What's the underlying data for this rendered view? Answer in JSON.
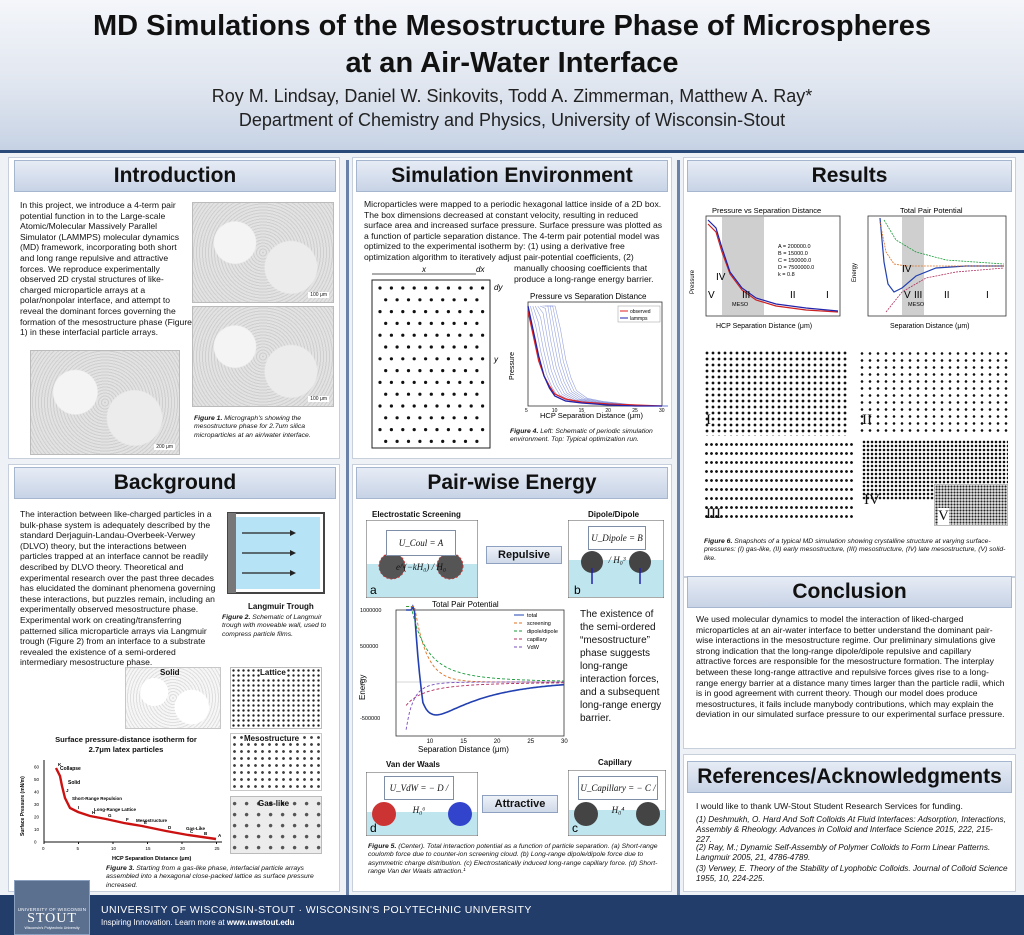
{
  "header": {
    "title_line1": "MD Simulations of the Mesostructure Phase of Microspheres",
    "title_line2": "at an Air-Water Interface",
    "authors": "Roy M. Lindsay, Daniel W. Sinkovits, Todd A. Zimmerman, Matthew A. Ray*",
    "department": "Department of Chemistry and Physics, University of Wisconsin-Stout"
  },
  "introduction": {
    "heading": "Introduction",
    "text": "In this project, we introduce a 4-term pair potential function in to the Large-scale Atomic/Molecular Massively Parallel Simulator (LAMMPS) molecular dynamics (MD) framework, incorporating both short and long range repulsive and attractive forces. We reproduce experimentally observed 2D crystal structures of like-charged microparticle arrays at a polar/nonpolar interface, and attempt to reveal the dominant forces governing the formation of the mesostructure phase (Figure 1) in these interfacial particle arrays.",
    "scale_100": "100 μm",
    "scale_200": "200 μm",
    "fig1_label": "Figure 1.",
    "fig1_caption": "Micrograph's showing the mesostructure phase for 2.7um silica microparticles at an air/water interface."
  },
  "background": {
    "heading": "Background",
    "text": "The interaction between like-charged particles in a bulk-phase system is adequately described by the standard Derjaguin-Landau-Overbeek-Verwey (DLVO) theory, but the interactions between particles trapped at an interface cannot be readily described by DLVO theory. Theoretical and experimental research over the past three decades has elucidated the dominant phenomena governing these interactions, but puzzles remain, including an experimentally observed mesostructure phase. Experimental work on creating/transferring patterned silica microparticle arrays via Langmuir trough (Figure 2) from an interface to a substrate revealed the existence of a semi-ordered intermediary mesostructure phase.",
    "trough_label": "Langmuir Trough",
    "fig2_label": "Figure 2.",
    "fig2_caption": "Schematic of Langmuir trough with moveable wall, used to compress particle films.",
    "phase_solid": "Solid",
    "phase_lattice": "Lattice",
    "phase_meso": "Mesostructure",
    "phase_gas": "Gas-like",
    "isotherm_title1": "Surface pressure-distance isotherm for",
    "isotherm_title2": "2.7μm latex particles",
    "fig3_label": "Figure 3.",
    "fig3_caption": "Starting from a gas-like phase, interfacial particle arrays assembled into a hexagonal close-packed lattice as surface pressure increased."
  },
  "isotherm": {
    "xlabel": "HCP Separation Distance (μm)",
    "ylabel": "Surface Pressure (mN/m)",
    "annotations": [
      "Collapse",
      "Solid",
      "Short-Range Repulsion",
      "Long-Range Lattice",
      "Mesostructure",
      "Gas-Like"
    ],
    "letters": [
      "K",
      "J",
      "I",
      "H",
      "G",
      "F",
      "E",
      "D",
      "C",
      "B",
      "A"
    ],
    "xticks": [
      "0",
      "5",
      "10",
      "15",
      "20",
      "25"
    ],
    "yticks": [
      "0",
      "10",
      "20",
      "30",
      "40",
      "50",
      "60"
    ]
  },
  "simulation": {
    "heading": "Simulation Environment",
    "text1": "Microparticles were mapped to a periodic hexagonal lattice inside of a 2D box. The box dimensions decreased at constant velocity, resulting in reduced surface area and increased surface pressure. Surface pressure was plotted as a function of particle separation distance. The 4-term pair potential model was optimized to the experimental isotherm by: (1) using a derivative free optimization algorithm to iteratively adjust pair-potential coefficients, (2)",
    "text2": "manually choosing coefficients that produce a long-range energy barrier.",
    "label_x": "x",
    "label_dx": "dx",
    "label_y": "y",
    "label_dy": "dy",
    "fig4_label": "Figure 4.",
    "fig4_caption": "Left: Schematic of periodic simulation environment. Top: Typical optimization run."
  },
  "pairwise": {
    "heading": "Pair-wise Energy",
    "electrostatic_title": "Electrostatic Screening",
    "dipole_title": "Dipole/Dipole",
    "vdw_title": "Van der Waals",
    "capillary_title": "Capillary",
    "repulsive": "Repulsive",
    "attractive": "Attractive",
    "eq_coul": "U_Coul = A e^(−kH₀) / H₀",
    "eq_dipole": "U_Dipole = B / H₀³",
    "eq_vdw": "U_VdW = − D / H₀⁶",
    "eq_cap": "U_Capillary = − C / H₀⁴",
    "letter_a": "a",
    "letter_b": "b",
    "letter_c": "c",
    "letter_d": "d",
    "side_text": "The existence of the semi-ordered “mesostructure” phase suggests long-range interaction forces, and a subsequent long-range energy barrier.",
    "fig5_label": "Figure 5.",
    "fig5_caption": "(Center). Total interaction potential as a function of particle separation. (a) Short-range coulomb force due to counter-ion screening cloud. (b) Long-range dipole/dipole force due to asymmetric charge distribution. (c) Electrostatically induced long-range capillary force. (d) Short-range Van der Waals attraction.¹"
  },
  "results": {
    "heading": "Results",
    "roman": [
      "I",
      "II",
      "III",
      "IV",
      "V"
    ],
    "fig6_label": "Figure 6.",
    "fig6_caption": "Snapshots of a typical MD simulation showing crystalline structure at varying surface-pressures: (I) gas-like, (II) early mesostructure, (III) mesostructure, (IV) late mesostructure, (V) solid-like.",
    "coeffs": [
      "A = 200000.0",
      "B = 15000.0",
      "C = 150000.0",
      "D = 7500000.0",
      "k = 0.8"
    ],
    "meso_label": "MESO"
  },
  "conclusion": {
    "heading": "Conclusion",
    "text": "We used molecular dynamics to model the interaction of liked-charged microparticles at an air-water interface to better understand the dominant pair-wise interactions in the mesostructure regime. Our preliminary simulations give strong indication that the long-range dipole/dipole repulsive and capillary attractive forces are responsible for the mesostructure formation. The interplay between these long-range attractive and repulsive forces gives rise to a long-range energy barrier at a distance many times larger than the particle radii, which is in good agreement with current theory. Though our model does produce mesostructures, it fails include manybody contributions, which may explain the deviation in our simulated surface pressure to our experimental surface pressure."
  },
  "references": {
    "heading": "References/Acknowledgments",
    "ack": "I would like to thank UW-Stout Student Research Services for funding.",
    "ref1": "(1) Deshmukh, O. Hard And Soft Colloids At Fluid Interfaces: Adsorption, Interactions, Assembly & Rheology. Advances in Colloid and Interface Science 2015, 222, 215-227.",
    "ref2": "(2) Ray, M.; Dynamic Self-Assembly of Polymer Colloids to Form Linear Patterns. Langmuir 2005, 21, 4786-4789.",
    "ref3": "(3) Verwey, E. Theory of the Stability of Lyophobic Colloids. Journal of Colloid Science 1955, 10, 224-225."
  },
  "footer": {
    "logo_top": "UNIVERSITY OF WISCONSIN",
    "logo_main": "STOUT",
    "logo_sub": "Wisconsin's Polytechnic University",
    "line1": "UNIVERSITY OF WISCONSIN-STOUT · WISCONSIN'S POLYTECHNIC UNIVERSITY",
    "line2_prefix": "Inspiring Innovation. Learn more at ",
    "line2_url": "www.uwstout.edu"
  },
  "chart_data": [
    {
      "type": "line",
      "title": "Pressure vs Separation Distance",
      "xlabel": "HCP Separation Distance (μm)",
      "ylabel": "Pressure",
      "xlim": [
        5,
        30
      ],
      "xticks": [
        5,
        10,
        15,
        20,
        25,
        30
      ],
      "series": [
        {
          "name": "observed",
          "color": "#d22",
          "x": [
            5,
            6,
            7,
            8,
            9,
            10,
            12,
            15,
            20,
            25,
            30
          ],
          "y": [
            0.95,
            0.7,
            0.45,
            0.3,
            0.2,
            0.12,
            0.07,
            0.04,
            0.02,
            0.01,
            0.0
          ]
        },
        {
          "name": "lammps",
          "color": "#22a",
          "x": [
            5,
            6,
            7,
            8,
            9,
            10,
            12,
            15,
            20,
            25,
            30
          ],
          "y": [
            1.0,
            0.75,
            0.5,
            0.3,
            0.18,
            0.1,
            0.05,
            0.03,
            0.01,
            0.0,
            0.0
          ]
        }
      ]
    },
    {
      "type": "line",
      "title": "Total Pair Potential",
      "xlabel": "Separation Distance (μm)",
      "ylabel": "Energy",
      "xlim": [
        5,
        30
      ],
      "ylim": [
        -750000,
        1000000
      ],
      "yticks": [
        1000000,
        500000,
        0,
        -500000
      ],
      "xticks": [
        10,
        15,
        20,
        25,
        30
      ],
      "series": [
        {
          "name": "total",
          "color": "#2240b0"
        },
        {
          "name": "screening",
          "color": "#e07020"
        },
        {
          "name": "dipole/dipole",
          "color": "#1a9a3a"
        },
        {
          "name": "capillary",
          "color": "#b03060"
        },
        {
          "name": "VdW",
          "color": "#7a4ec0"
        }
      ]
    }
  ]
}
